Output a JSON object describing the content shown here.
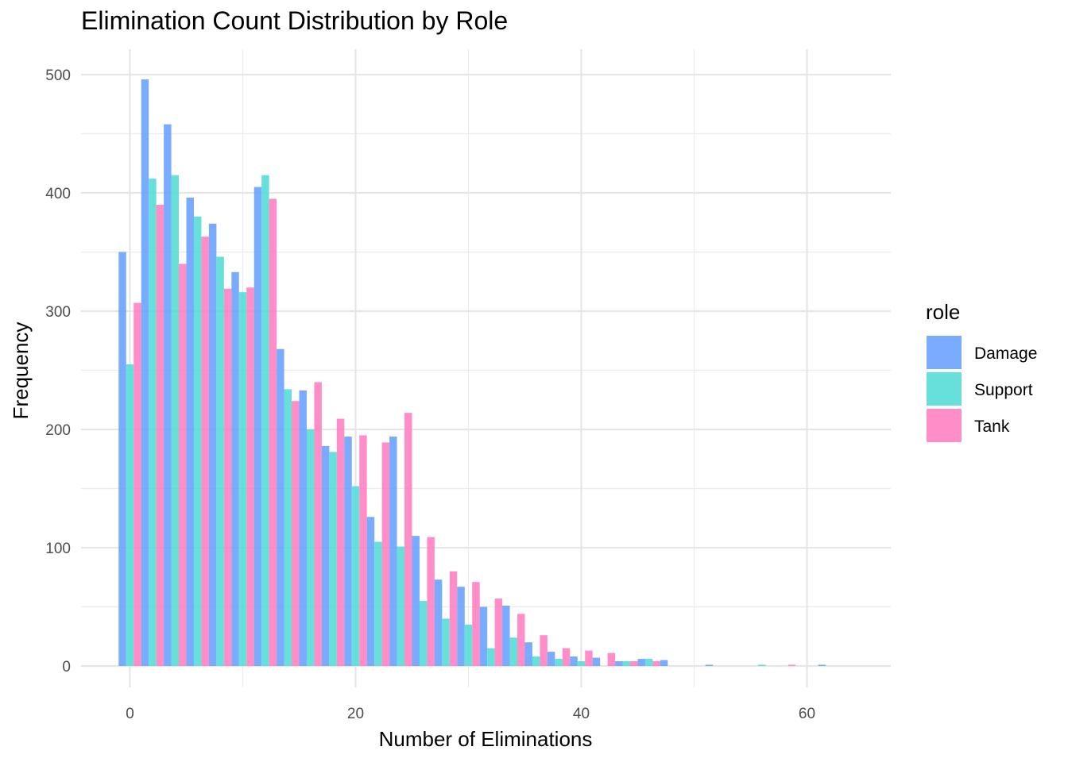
{
  "chart_data": {
    "type": "bar",
    "title": "Elimination Count Distribution by Role",
    "xlabel": "Number of Eliminations",
    "ylabel": "Frequency",
    "xlim": [
      -2.3,
      67
    ],
    "ylim": [
      0,
      500
    ],
    "x_ticks": [
      0,
      20,
      40,
      60
    ],
    "y_ticks": [
      0,
      100,
      200,
      300,
      400,
      500
    ],
    "grid": true,
    "legend_title": "role",
    "legend_position": "right",
    "bin_width": 2,
    "bin_starts": [
      -1,
      1,
      3,
      5,
      7,
      9,
      11,
      13,
      15,
      17,
      19,
      21,
      23,
      25,
      27,
      29,
      31,
      33,
      35,
      37,
      39,
      41,
      43,
      45,
      47,
      49,
      51,
      53,
      55,
      57,
      59,
      61,
      63
    ],
    "series": [
      {
        "name": "Damage",
        "color": "#619cff",
        "values": [
          350,
          496,
          458,
          396,
          374,
          333,
          405,
          268,
          233,
          186,
          194,
          126,
          194,
          110,
          73,
          67,
          50,
          51,
          20,
          12,
          8,
          7,
          4,
          6,
          5,
          0,
          1,
          0,
          0,
          0,
          0,
          1,
          0
        ]
      },
      {
        "name": "Support",
        "color": "#4cdad5",
        "values": [
          255,
          412,
          415,
          380,
          346,
          316,
          415,
          234,
          200,
          181,
          152,
          105,
          101,
          55,
          40,
          35,
          15,
          24,
          8,
          6,
          4,
          0,
          4,
          6,
          0,
          0,
          0,
          0,
          1,
          0,
          0,
          0,
          0
        ]
      },
      {
        "name": "Tank",
        "color": "#ff79bd",
        "values": [
          307,
          390,
          340,
          363,
          319,
          320,
          395,
          224,
          240,
          209,
          195,
          189,
          214,
          109,
          80,
          71,
          57,
          44,
          26,
          15,
          13,
          11,
          4,
          4,
          0,
          0,
          0,
          0,
          0,
          1,
          0,
          0,
          0
        ]
      }
    ]
  }
}
